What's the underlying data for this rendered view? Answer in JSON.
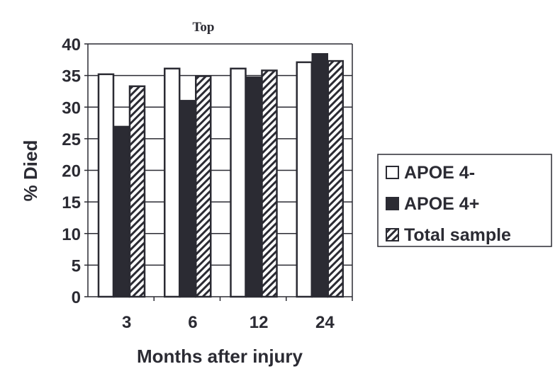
{
  "chart_data": {
    "type": "bar",
    "title": "Top",
    "xlabel": "Months after injury",
    "ylabel": "% Died",
    "categories": [
      "3",
      "6",
      "12",
      "24"
    ],
    "ylim": [
      0,
      40
    ],
    "yticks": [
      0,
      5,
      10,
      15,
      20,
      25,
      30,
      35,
      40
    ],
    "grid": true,
    "legend_position": "right",
    "series": [
      {
        "name": "APOE 4-",
        "values": [
          35.2,
          36.1,
          36.1,
          37.1
        ],
        "fill": "white"
      },
      {
        "name": "APOE 4+",
        "values": [
          26.9,
          31.0,
          34.7,
          38.4
        ],
        "fill": "#2b2b33"
      },
      {
        "name": "Total sample",
        "values": [
          33.3,
          34.9,
          35.8,
          37.3
        ],
        "fill": "hatched"
      }
    ]
  }
}
